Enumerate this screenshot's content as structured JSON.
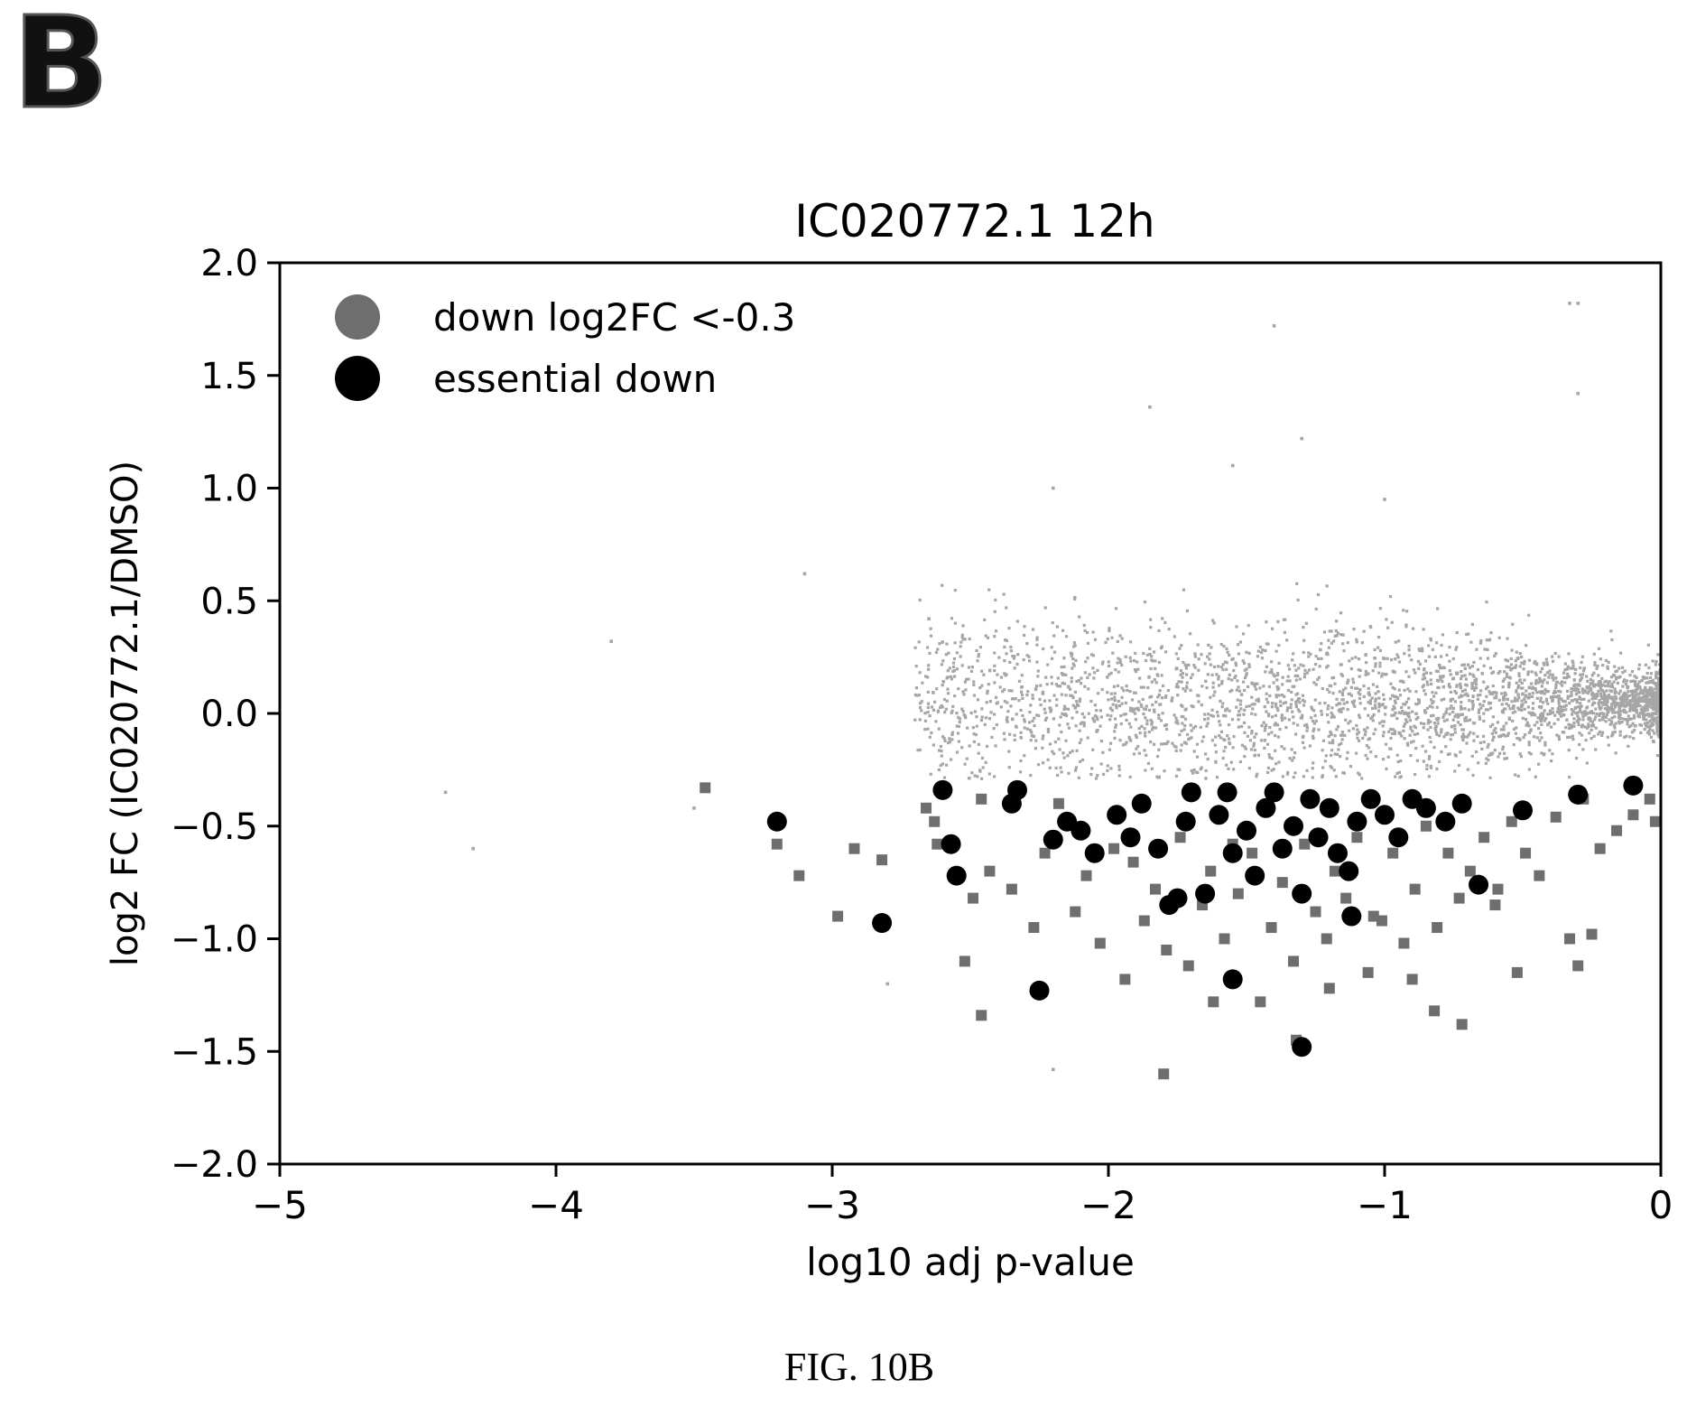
{
  "panel_label": "B",
  "caption": "FIG. 10B",
  "colors": {
    "background_points": "#a6a6a6",
    "down_points": "#6e6e6e",
    "essential_points": "#000000",
    "axis": "#000000"
  },
  "chart_data": {
    "type": "scatter",
    "title": "IC020772.1 12h",
    "xlabel": "log10 adj p-value",
    "ylabel": "log2 FC (IC020772.1/DMSO)",
    "xlim": [
      -5,
      0
    ],
    "ylim": [
      -2.0,
      2.0
    ],
    "xticks": [
      -5,
      -4,
      -3,
      -2,
      -1,
      0
    ],
    "xtick_labels": [
      "−5",
      "−4",
      "−3",
      "−2",
      "−1",
      "0"
    ],
    "yticks": [
      2.0,
      1.5,
      1.0,
      0.5,
      0.0,
      -0.5,
      -1.0,
      -1.5,
      -2.0
    ],
    "ytick_labels": [
      "2.0",
      "1.5",
      "1.0",
      "0.5",
      "0.0",
      "−0.5",
      "−1.0",
      "−1.5",
      "−2.0"
    ],
    "grid": false,
    "legend_position": "top-left",
    "series": [
      {
        "name": "down log2FC <-0.3",
        "color": "#6e6e6e",
        "x": [
          -3.46,
          -3.2,
          -3.12,
          -2.98,
          -2.92,
          -2.82,
          -2.66,
          -2.63,
          -2.62,
          -2.52,
          -2.49,
          -2.46,
          -2.43,
          -2.35,
          -2.27,
          -2.23,
          -2.18,
          -2.12,
          -2.08,
          -2.03,
          -1.98,
          -1.94,
          -1.91,
          -1.87,
          -1.83,
          -1.79,
          -1.74,
          -1.71,
          -1.66,
          -1.63,
          -1.58,
          -1.53,
          -1.48,
          -1.45,
          -1.41,
          -1.37,
          -1.33,
          -1.29,
          -1.25,
          -1.21,
          -1.18,
          -1.14,
          -1.1,
          -1.06,
          -1.01,
          -0.97,
          -0.93,
          -0.89,
          -0.85,
          -0.81,
          -0.77,
          -0.73,
          -0.69,
          -0.64,
          -0.59,
          -0.54,
          -0.49,
          -0.44,
          -0.38,
          -0.33,
          -0.28,
          -0.22,
          -0.16,
          -0.1,
          -0.04,
          -0.02,
          -1.8,
          -1.62,
          -1.32,
          -1.04,
          -0.82,
          -0.72,
          -0.52,
          -0.3,
          -2.46,
          -1.55,
          -1.2,
          -0.9,
          -0.6,
          -0.25
        ],
        "y": [
          -0.33,
          -0.58,
          -0.72,
          -0.9,
          -0.6,
          -0.65,
          -0.42,
          -0.48,
          -0.58,
          -1.1,
          -0.82,
          -0.38,
          -0.7,
          -0.78,
          -0.95,
          -0.62,
          -0.4,
          -0.88,
          -0.72,
          -1.02,
          -0.6,
          -1.18,
          -0.66,
          -0.92,
          -0.78,
          -1.05,
          -0.55,
          -1.12,
          -0.85,
          -0.7,
          -1.0,
          -0.8,
          -0.62,
          -1.28,
          -0.95,
          -0.75,
          -1.1,
          -0.58,
          -0.88,
          -1.0,
          -0.7,
          -0.82,
          -0.55,
          -1.15,
          -0.92,
          -0.62,
          -1.02,
          -0.78,
          -0.5,
          -0.95,
          -0.62,
          -0.82,
          -0.7,
          -0.55,
          -0.78,
          -0.48,
          -0.62,
          -0.72,
          -0.46,
          -1.0,
          -0.38,
          -0.6,
          -0.52,
          -0.45,
          -0.38,
          -0.48,
          -1.6,
          -1.28,
          -1.45,
          -0.9,
          -1.32,
          -1.38,
          -1.15,
          -1.12,
          -1.34,
          -0.58,
          -1.22,
          -1.18,
          -0.85,
          -0.98
        ]
      },
      {
        "name": "essential down",
        "color": "#000000",
        "x": [
          -3.2,
          -2.82,
          -2.6,
          -2.57,
          -2.55,
          -2.35,
          -2.33,
          -2.25,
          -2.2,
          -2.15,
          -2.1,
          -2.05,
          -1.97,
          -1.92,
          -1.88,
          -1.82,
          -1.78,
          -1.72,
          -1.7,
          -1.65,
          -1.6,
          -1.57,
          -1.55,
          -1.5,
          -1.47,
          -1.43,
          -1.4,
          -1.37,
          -1.33,
          -1.3,
          -1.27,
          -1.24,
          -1.2,
          -1.17,
          -1.13,
          -1.1,
          -1.05,
          -1.0,
          -0.95,
          -0.9,
          -0.85,
          -0.78,
          -0.72,
          -0.66,
          -0.5,
          -0.3,
          -0.1,
          -1.3,
          -1.55,
          -1.75,
          -1.12
        ],
        "y": [
          -0.48,
          -0.93,
          -0.34,
          -0.58,
          -0.72,
          -0.4,
          -0.34,
          -1.23,
          -0.56,
          -0.48,
          -0.52,
          -0.62,
          -0.45,
          -0.55,
          -0.4,
          -0.6,
          -0.85,
          -0.48,
          -0.35,
          -0.8,
          -0.45,
          -0.35,
          -0.62,
          -0.52,
          -0.72,
          -0.42,
          -0.35,
          -0.6,
          -0.5,
          -0.8,
          -0.38,
          -0.55,
          -0.42,
          -0.62,
          -0.7,
          -0.48,
          -0.38,
          -0.45,
          -0.55,
          -0.38,
          -0.42,
          -0.48,
          -0.4,
          -0.76,
          -0.43,
          -0.36,
          -0.32,
          -1.48,
          -1.18,
          -0.82,
          -0.9
        ]
      }
    ]
  }
}
